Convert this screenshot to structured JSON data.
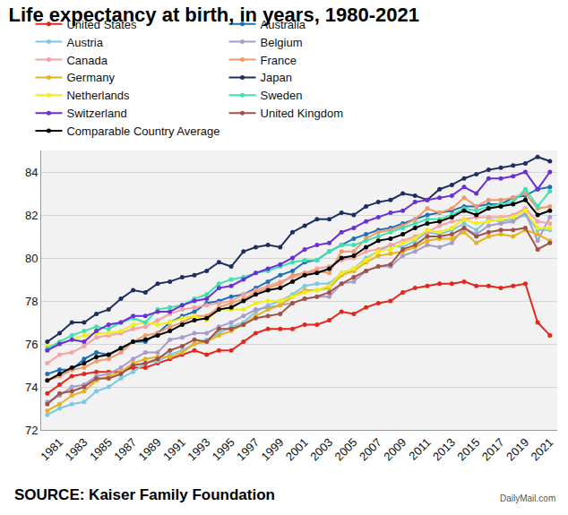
{
  "chart_data": {
    "type": "line",
    "title": "Life expectancy at birth, in years, 1980-2021",
    "annotations": [
      "SOURCE: Kaiser Family Foundation",
      "DailyMail.com"
    ],
    "x": [
      1980,
      1981,
      1982,
      1983,
      1984,
      1985,
      1986,
      1987,
      1988,
      1989,
      1990,
      1991,
      1992,
      1993,
      1994,
      1995,
      1996,
      1997,
      1998,
      1999,
      2000,
      2001,
      2002,
      2003,
      2004,
      2005,
      2006,
      2007,
      2008,
      2009,
      2010,
      2011,
      2012,
      2013,
      2014,
      2015,
      2016,
      2017,
      2018,
      2019,
      2020,
      2021
    ],
    "xlim": [
      1979.5,
      2021.6
    ],
    "xticks": [
      1981,
      1983,
      1985,
      1987,
      1989,
      1991,
      1993,
      1995,
      1997,
      1999,
      2001,
      2003,
      2005,
      2007,
      2009,
      2011,
      2013,
      2015,
      2017,
      2019,
      2021
    ],
    "ylim": [
      72,
      85
    ],
    "yticks": [
      72,
      74,
      76,
      78,
      80,
      82,
      84
    ],
    "grid": true,
    "legend": "top",
    "marker": "circle",
    "series": [
      {
        "name": "United States",
        "color": "#e4261b",
        "values": [
          73.7,
          74.1,
          74.5,
          74.6,
          74.7,
          74.7,
          74.7,
          74.9,
          74.9,
          75.1,
          75.3,
          75.5,
          75.7,
          75.5,
          75.7,
          75.7,
          76.1,
          76.5,
          76.7,
          76.7,
          76.7,
          76.9,
          76.9,
          77.1,
          77.5,
          77.4,
          77.7,
          77.9,
          78.0,
          78.4,
          78.6,
          78.7,
          78.8,
          78.8,
          78.9,
          78.7,
          78.7,
          78.6,
          78.7,
          78.8,
          77.0,
          76.4
        ]
      },
      {
        "name": "Australia",
        "color": "#1f6fb5",
        "values": [
          74.6,
          74.8,
          74.8,
          75.3,
          75.6,
          75.5,
          75.8,
          76.1,
          76.1,
          76.5,
          77.0,
          77.3,
          77.5,
          77.9,
          78.0,
          78.2,
          78.3,
          78.6,
          78.9,
          79.2,
          79.4,
          79.8,
          79.9,
          80.3,
          80.6,
          80.9,
          81.1,
          81.3,
          81.4,
          81.6,
          81.8,
          82.0,
          82.1,
          82.2,
          82.4,
          82.4,
          82.5,
          82.5,
          82.8,
          82.9,
          83.2,
          83.3
        ]
      },
      {
        "name": "Austria",
        "color": "#7ec8e3",
        "values": [
          72.7,
          73.0,
          73.2,
          73.3,
          73.8,
          74.0,
          74.4,
          74.7,
          75.1,
          75.2,
          75.5,
          75.7,
          76.0,
          76.2,
          76.5,
          76.8,
          77.0,
          77.5,
          77.8,
          78.0,
          78.3,
          78.7,
          78.8,
          78.8,
          79.3,
          79.5,
          80.0,
          80.3,
          80.6,
          80.5,
          80.8,
          81.2,
          81.1,
          81.3,
          81.6,
          81.3,
          81.8,
          81.7,
          81.8,
          82.0,
          81.3,
          81.3
        ]
      },
      {
        "name": "Belgium",
        "color": "#a99cc9",
        "values": [
          73.3,
          73.6,
          74.0,
          74.1,
          74.5,
          74.6,
          74.9,
          75.3,
          75.6,
          75.6,
          76.2,
          76.3,
          76.5,
          76.5,
          76.8,
          77.0,
          77.3,
          77.6,
          77.7,
          77.8,
          77.9,
          78.1,
          78.2,
          78.2,
          78.8,
          78.9,
          79.4,
          79.6,
          79.6,
          80.1,
          80.3,
          80.6,
          80.5,
          80.7,
          81.4,
          81.1,
          81.5,
          81.6,
          81.7,
          82.1,
          80.8,
          81.9
        ]
      },
      {
        "name": "Canada",
        "color": "#f4a3a3",
        "values": [
          75.1,
          75.5,
          75.6,
          75.9,
          76.3,
          76.4,
          76.5,
          76.7,
          76.8,
          77.1,
          77.4,
          77.6,
          77.7,
          77.8,
          77.9,
          78.0,
          78.3,
          78.5,
          78.7,
          78.9,
          79.1,
          79.3,
          79.5,
          79.6,
          79.9,
          80.0,
          80.3,
          80.4,
          80.6,
          80.8,
          81.0,
          81.2,
          81.5,
          81.7,
          81.8,
          81.9,
          81.9,
          81.9,
          82.0,
          82.3,
          81.7,
          81.6
        ]
      },
      {
        "name": "France",
        "color": "#ef9a6a",
        "values": [
          74.3,
          74.5,
          74.8,
          74.9,
          75.2,
          75.3,
          75.6,
          76.1,
          76.4,
          76.5,
          76.8,
          77.0,
          77.3,
          77.3,
          77.7,
          77.9,
          78.1,
          78.4,
          78.6,
          78.8,
          79.2,
          79.3,
          79.4,
          79.3,
          80.3,
          80.3,
          80.9,
          81.2,
          81.3,
          81.5,
          81.8,
          82.3,
          82.1,
          82.3,
          82.8,
          82.4,
          82.7,
          82.7,
          82.8,
          83.0,
          82.3,
          82.4
        ]
      },
      {
        "name": "Germany",
        "color": "#e5b321",
        "values": [
          72.9,
          73.2,
          73.6,
          73.8,
          74.3,
          74.5,
          74.7,
          75.1,
          75.3,
          75.4,
          75.4,
          75.6,
          76.0,
          76.1,
          76.4,
          76.6,
          76.9,
          77.3,
          77.6,
          77.8,
          78.2,
          78.5,
          78.5,
          78.6,
          79.2,
          79.4,
          79.8,
          80.1,
          80.2,
          80.3,
          80.5,
          80.8,
          80.9,
          80.9,
          81.2,
          80.7,
          81.0,
          81.1,
          81.0,
          81.3,
          81.1,
          80.8
        ]
      },
      {
        "name": "Japan",
        "color": "#1c2f5e",
        "values": [
          76.1,
          76.5,
          77.0,
          77.0,
          77.4,
          77.6,
          78.1,
          78.5,
          78.4,
          78.8,
          78.9,
          79.1,
          79.2,
          79.4,
          79.8,
          79.6,
          80.3,
          80.5,
          80.6,
          80.5,
          81.2,
          81.5,
          81.8,
          81.8,
          82.1,
          82.0,
          82.4,
          82.6,
          82.7,
          83.0,
          82.9,
          82.7,
          83.2,
          83.4,
          83.7,
          83.9,
          84.1,
          84.2,
          84.3,
          84.4,
          84.7,
          84.5
        ]
      },
      {
        "name": "Netherlands",
        "color": "#f2ee1a",
        "values": [
          75.9,
          76.0,
          76.2,
          76.4,
          76.5,
          76.5,
          76.6,
          76.9,
          77.0,
          76.9,
          77.0,
          77.2,
          77.3,
          77.1,
          77.6,
          77.6,
          77.6,
          77.9,
          78.0,
          78.0,
          78.2,
          78.4,
          78.5,
          78.7,
          79.3,
          79.5,
          79.9,
          80.3,
          80.4,
          80.7,
          80.9,
          81.3,
          81.2,
          81.4,
          81.8,
          81.6,
          81.7,
          81.8,
          81.9,
          82.2,
          81.4,
          81.4
        ]
      },
      {
        "name": "Sweden",
        "color": "#3fe0b0",
        "values": [
          75.8,
          76.1,
          76.4,
          76.6,
          76.8,
          76.7,
          77.0,
          77.2,
          77.0,
          77.6,
          77.7,
          77.8,
          78.1,
          78.3,
          78.8,
          79.0,
          79.1,
          79.3,
          79.4,
          79.6,
          79.8,
          79.9,
          79.9,
          80.3,
          80.6,
          80.6,
          80.8,
          81.0,
          81.2,
          81.4,
          81.6,
          81.8,
          81.8,
          82.0,
          82.3,
          82.2,
          82.4,
          82.5,
          82.6,
          83.2,
          82.4,
          83.1
        ]
      },
      {
        "name": "Switzerland",
        "color": "#6a2fd6",
        "values": [
          75.7,
          76.0,
          76.2,
          76.1,
          76.6,
          76.9,
          77.0,
          77.3,
          77.3,
          77.5,
          77.5,
          77.8,
          78.0,
          78.1,
          78.6,
          78.7,
          79.0,
          79.3,
          79.5,
          79.7,
          80.0,
          80.4,
          80.6,
          80.7,
          81.2,
          81.4,
          81.7,
          81.9,
          82.1,
          82.2,
          82.6,
          82.7,
          82.8,
          82.9,
          83.3,
          83.0,
          83.7,
          83.7,
          83.8,
          84.0,
          83.2,
          84.0
        ]
      },
      {
        "name": "United Kingdom",
        "color": "#a0524a",
        "values": [
          73.2,
          73.7,
          73.8,
          74.0,
          74.4,
          74.4,
          74.6,
          75.0,
          75.1,
          75.3,
          75.7,
          75.9,
          76.2,
          76.1,
          76.7,
          76.7,
          76.9,
          77.2,
          77.3,
          77.4,
          77.9,
          78.1,
          78.2,
          78.4,
          78.8,
          79.1,
          79.4,
          79.6,
          79.7,
          80.4,
          80.6,
          81.0,
          81.0,
          81.1,
          81.4,
          81.0,
          81.2,
          81.3,
          81.3,
          81.4,
          80.4,
          80.7
        ]
      },
      {
        "name": "Comparable Country Average",
        "color": "#000000",
        "values": [
          74.3,
          74.6,
          74.9,
          75.1,
          75.4,
          75.5,
          75.8,
          76.1,
          76.2,
          76.4,
          76.6,
          76.9,
          77.1,
          77.2,
          77.6,
          77.7,
          78.0,
          78.3,
          78.5,
          78.6,
          78.9,
          79.2,
          79.3,
          79.5,
          80.0,
          80.1,
          80.5,
          80.8,
          80.9,
          81.1,
          81.4,
          81.6,
          81.7,
          81.9,
          82.2,
          82.0,
          82.3,
          82.4,
          82.5,
          82.7,
          82.0,
          82.2
        ]
      }
    ]
  }
}
